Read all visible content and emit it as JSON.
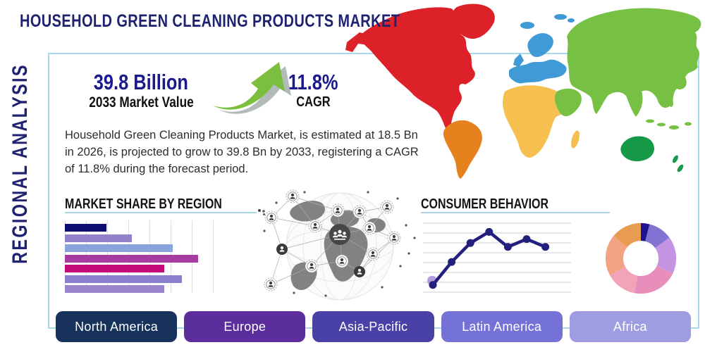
{
  "page": {
    "title": "HOUSEHOLD GREEN CLEANING PRODUCTS MARKET",
    "side_label": "REGIONAL ANALYSIS"
  },
  "stats": {
    "market_value": "39.8 Billion",
    "market_value_label": "2033 Market Value",
    "cagr_value": "11.8%",
    "cagr_label": "CAGR"
  },
  "description": "Household Green Cleaning Products Market, is estimated at 18.5 Bn in 2026, is projected to grow to 39.8 Bn by 2033, registering a CAGR of 11.8% during the forecast period.",
  "sections": {
    "market_share": {
      "title": "MARKET SHARE BY REGION"
    },
    "consumer_behavior": {
      "title": "CONSUMER BEHAVIOR"
    }
  },
  "chart_data": [
    {
      "type": "bar",
      "title": "MARKET SHARE BY REGION",
      "orientation": "horizontal",
      "labels_visible": false,
      "values": [
        28,
        45,
        73,
        90,
        67,
        79,
        67
      ],
      "xlim": [
        0,
        100
      ],
      "grid": "vertical",
      "colors": [
        "#0d0d70",
        "#9181c8",
        "#8aa3dd",
        "#a83ba0",
        "#c40a78",
        "#8b7fd0",
        "#9a85cc"
      ]
    },
    {
      "type": "line",
      "title": "CONSUMER BEHAVIOR",
      "values": [
        10,
        45,
        74,
        91,
        68,
        80,
        68
      ],
      "ylim": [
        0,
        100
      ],
      "grid": "horizontal",
      "line_color": "#23207d",
      "marker_color": "#23207d",
      "start_marker_color": "#b39ddb"
    },
    {
      "type": "pie",
      "donut": true,
      "values": [
        4,
        11,
        17,
        21,
        14,
        19,
        14
      ],
      "colors": [
        "#1c1390",
        "#8272d2",
        "#c493e2",
        "#e78fba",
        "#f2a3b8",
        "#f2a383",
        "#e89c51"
      ]
    }
  ],
  "regions": [
    {
      "label": "North America",
      "color": "#17335c"
    },
    {
      "label": "Europe",
      "color": "#5c2d9c"
    },
    {
      "label": "Asia-Pacific",
      "color": "#4a41a7"
    },
    {
      "label": "Latin America",
      "color": "#7472d6"
    },
    {
      "label": "Africa",
      "color": "#9f9de2"
    }
  ],
  "map": {
    "continents": [
      {
        "id": "north-america",
        "color": "#dd2128"
      },
      {
        "id": "greenland",
        "color": "#dd2128"
      },
      {
        "id": "south-america",
        "color": "#e5821d"
      },
      {
        "id": "europe",
        "color": "#3f9ad6"
      },
      {
        "id": "africa",
        "color": "#f5c050"
      },
      {
        "id": "asia",
        "color": "#76c043"
      },
      {
        "id": "oceania",
        "color": "#169a48"
      }
    ]
  },
  "theme": {
    "title_color": "#1e2270",
    "stat_color": "#1a1a8c",
    "underline_color": "#a9d6e8",
    "box_border_color": "#a9d9ec",
    "arrow_color": "#7cbf3f"
  }
}
